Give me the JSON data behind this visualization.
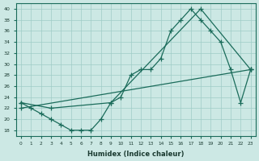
{
  "xlabel": "Humidex (Indice chaleur)",
  "ylabel": "",
  "bg_color": "#cce8e4",
  "line_color": "#1a6b5a",
  "xlim": [
    -0.5,
    23.5
  ],
  "ylim": [
    17,
    41
  ],
  "yticks": [
    18,
    20,
    22,
    24,
    26,
    28,
    30,
    32,
    34,
    36,
    38,
    40
  ],
  "xticks": [
    0,
    1,
    2,
    3,
    4,
    5,
    6,
    7,
    8,
    9,
    10,
    11,
    12,
    13,
    14,
    15,
    16,
    17,
    18,
    19,
    20,
    21,
    22,
    23
  ],
  "line1_x": [
    0,
    1,
    2,
    3,
    4,
    5,
    6,
    7,
    8,
    9,
    10,
    11,
    12,
    13,
    14,
    15,
    16,
    17,
    18,
    19,
    20,
    21,
    22,
    23
  ],
  "line1_y": [
    23,
    22,
    21,
    20,
    19,
    18,
    18,
    18,
    20,
    23,
    24,
    28,
    29,
    29,
    31,
    36,
    38,
    40,
    38,
    36,
    34,
    29,
    23,
    29
  ],
  "line2_x": [
    0,
    3,
    9,
    18,
    23
  ],
  "line2_y": [
    23,
    22,
    23,
    40,
    29
  ],
  "line3_x": [
    0,
    23
  ],
  "line3_y": [
    22,
    29
  ]
}
